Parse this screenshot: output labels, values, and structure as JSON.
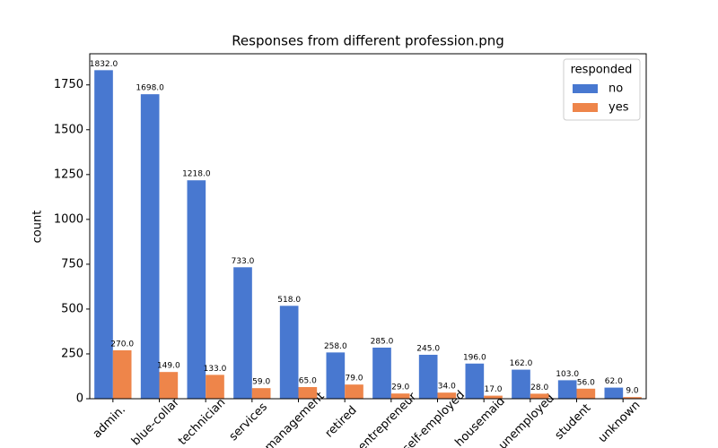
{
  "chart_data": {
    "type": "grouped-bar",
    "title": "Responses from different profession.png",
    "y_label": "count",
    "categories": [
      "admin.",
      "blue-collar",
      "technician",
      "services",
      "management",
      "retired",
      "entrepreneur",
      "self-employed",
      "housemaid",
      "unemployed",
      "student",
      "unknown"
    ],
    "legend_title": "responded",
    "legend": "upper right",
    "series": [
      {
        "name": "no",
        "color": "#4878d0",
        "values": [
          1832,
          1698,
          1218,
          733,
          518,
          258,
          285,
          245,
          196,
          162,
          103,
          62
        ],
        "value_labels": [
          "1832.0",
          "1698.0",
          "1218.0",
          "733.0",
          "518.0",
          "258.0",
          "285.0",
          "245.0",
          "196.0",
          "162.0",
          "103.0",
          "62.0"
        ]
      },
      {
        "name": "yes",
        "color": "#ee854a",
        "values": [
          270,
          149,
          133,
          59,
          65,
          79,
          29,
          34,
          17,
          28,
          56,
          9
        ],
        "value_labels": [
          "270.0",
          "149.0",
          "133.0",
          "59.0",
          "65.0",
          "79.0",
          "29.0",
          "34.0",
          "17.0",
          "28.0",
          "56.0",
          "9.0"
        ]
      }
    ],
    "ylim": [
      0,
      1923.6
    ],
    "yticks": [
      0,
      250,
      500,
      750,
      1000,
      1250,
      1500,
      1750
    ]
  }
}
